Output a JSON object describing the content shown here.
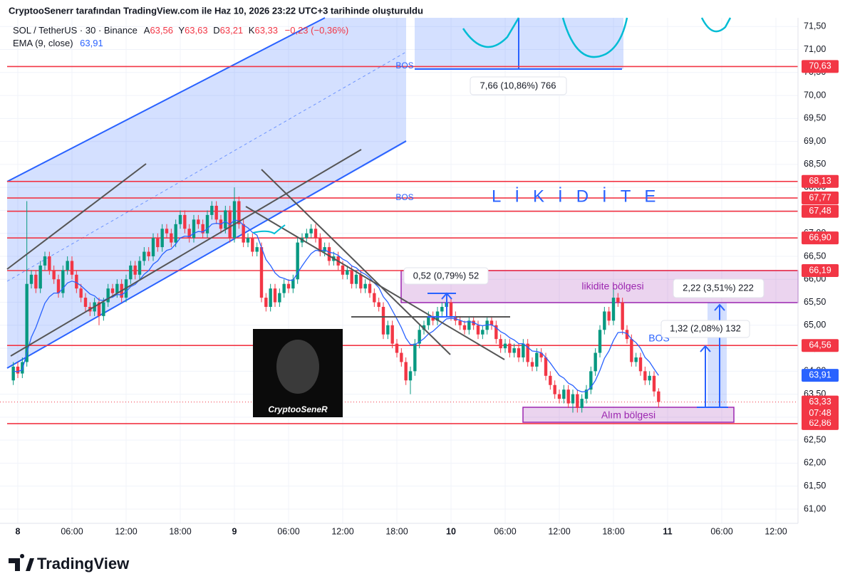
{
  "header": {
    "caption": "CryptooSenerr tarafından TradingView.com ile Haz 10, 2026 23:22 UTC+3 tarihinde oluşturuldu",
    "symbol": "SOL / TetherUS · 30 · Binance",
    "ohlc": [
      {
        "key": "A",
        "value": "63,56"
      },
      {
        "key": "Y",
        "value": "63,63"
      },
      {
        "key": "D",
        "value": "63,21"
      },
      {
        "key": "K",
        "value": "63,33"
      }
    ],
    "change": "−0,23 (−0,36%)"
  },
  "chart_data": {
    "type": "candlestick",
    "up_color": "#089981",
    "down_color": "#f23645",
    "grid": true,
    "categories": [
      null,
      "8",
      null,
      null,
      null,
      null,
      null,
      null,
      null,
      null,
      null,
      null,
      null,
      "06:00",
      null,
      null,
      null,
      null,
      null,
      null,
      null,
      null,
      null,
      null,
      null,
      "12:00",
      null,
      null,
      null,
      null,
      null,
      null,
      null,
      null,
      null,
      null,
      null,
      "18:00",
      null,
      null,
      null,
      null,
      null,
      null,
      null,
      null,
      null,
      null,
      null,
      "9",
      null,
      null,
      null,
      null,
      null,
      null,
      null,
      null,
      null,
      null,
      null,
      "06:00",
      null,
      null,
      null,
      null,
      null,
      null,
      null,
      null,
      null,
      null,
      null,
      "12:00",
      null,
      null,
      null,
      null,
      null,
      null,
      null,
      null,
      null,
      null,
      null,
      "18:00",
      null,
      null,
      null,
      null,
      null,
      null,
      null,
      null,
      null,
      null,
      null,
      "10",
      null,
      null,
      null,
      null,
      null,
      null,
      null,
      null,
      null,
      null,
      null,
      "06:00",
      null,
      null,
      null,
      null,
      null,
      null,
      null,
      null,
      null,
      null,
      null,
      "12:00",
      null,
      null,
      null,
      null,
      null,
      null,
      null,
      null,
      null,
      null,
      null,
      "18:00",
      null,
      null,
      null,
      null,
      null,
      null,
      null,
      null,
      null,
      null,
      null,
      "11",
      null,
      null,
      null,
      null,
      null,
      null,
      null,
      null,
      null,
      null,
      null,
      "06:00",
      null,
      null,
      null,
      null,
      null,
      null,
      null,
      null,
      null,
      null,
      null,
      "12:00",
      null,
      null,
      null,
      null
    ],
    "open": [
      63.8,
      64.1,
      63.95,
      64.2,
      65.9,
      66.1,
      65.8,
      66.3,
      66.5,
      66.2,
      66.0,
      65.7,
      66.2,
      66.4,
      66.1,
      65.8,
      65.6,
      65.4,
      65.3,
      65.5,
      65.2,
      65.5,
      65.8,
      65.7,
      65.9,
      65.6,
      66.0,
      66.3,
      66.1,
      66.4,
      66.6,
      66.5,
      66.9,
      66.7,
      67.1,
      67.0,
      66.8,
      67.2,
      67.4,
      67.1,
      66.9,
      67.3,
      67.2,
      67.0,
      67.4,
      67.6,
      67.3,
      67.1,
      67.5,
      66.9,
      67.7,
      67.2,
      66.8,
      66.9,
      66.6,
      66.7,
      65.6,
      65.4,
      65.8,
      65.5,
      65.7,
      65.9,
      65.8,
      66.0,
      66.8,
      66.9,
      67.0,
      67.1,
      66.9,
      66.6,
      66.7,
      66.4,
      66.5,
      66.3,
      66.1,
      66.2,
      65.9,
      66.1,
      65.8,
      65.9,
      65.7,
      65.5,
      65.4,
      64.8,
      65.0,
      64.6,
      64.4,
      64.2,
      63.8,
      64.0,
      64.6,
      64.9,
      65.0,
      65.2,
      65.1,
      65.3,
      65.4,
      65.5,
      65.2,
      65.1,
      65.0,
      64.9,
      65.1,
      65.0,
      64.8,
      64.9,
      65.1,
      65.0,
      64.7,
      64.5,
      64.6,
      64.4,
      64.5,
      64.3,
      64.6,
      64.2,
      64.1,
      64.4,
      64.3,
      63.9,
      63.7,
      63.5,
      63.4,
      63.6,
      63.3,
      63.5,
      63.2,
      63.4,
      63.6,
      64.0,
      64.4,
      64.9,
      65.3,
      65.1,
      65.6,
      65.5,
      64.9,
      64.7,
      64.2,
      64.3,
      64.0,
      63.8,
      63.9,
      63.56,
      null,
      null,
      null,
      null,
      null,
      null,
      null,
      null,
      null,
      null,
      null,
      null,
      null,
      null,
      null,
      null,
      null,
      null,
      null,
      null,
      null,
      null,
      null,
      null,
      null,
      null,
      null,
      null,
      null,
      null
    ],
    "high": [
      64.2,
      64.2,
      64.3,
      67.7,
      66.2,
      66.2,
      66.4,
      66.6,
      66.6,
      66.3,
      66.1,
      66.3,
      66.5,
      66.5,
      66.2,
      65.9,
      65.7,
      65.5,
      65.6,
      65.6,
      65.6,
      65.9,
      65.9,
      66.0,
      66.0,
      66.1,
      66.4,
      66.4,
      66.5,
      66.7,
      66.7,
      67.0,
      67.0,
      67.2,
      67.2,
      67.1,
      67.3,
      67.5,
      67.5,
      67.2,
      67.4,
      67.4,
      67.3,
      67.5,
      67.7,
      67.7,
      67.4,
      67.6,
      67.6,
      68.0,
      67.8,
      67.3,
      67.0,
      67.0,
      66.8,
      66.8,
      65.7,
      65.9,
      65.9,
      65.8,
      66.0,
      66.0,
      66.1,
      66.9,
      67.0,
      67.1,
      67.2,
      67.2,
      67.0,
      66.8,
      66.8,
      66.6,
      66.6,
      66.4,
      66.3,
      66.3,
      66.2,
      66.2,
      66.0,
      66.0,
      65.8,
      65.6,
      65.5,
      65.1,
      65.1,
      64.7,
      64.5,
      64.3,
      64.1,
      64.7,
      65.0,
      65.1,
      65.3,
      65.3,
      65.4,
      65.5,
      65.7,
      65.6,
      65.3,
      65.2,
      65.1,
      65.2,
      65.2,
      65.1,
      65.0,
      65.2,
      65.2,
      65.1,
      64.8,
      64.7,
      64.7,
      64.6,
      64.6,
      64.7,
      64.7,
      64.3,
      64.5,
      64.5,
      64.4,
      64.0,
      63.8,
      63.6,
      63.7,
      63.7,
      63.6,
      63.6,
      63.5,
      63.7,
      64.1,
      64.5,
      65.0,
      65.4,
      65.4,
      65.8,
      65.7,
      65.6,
      65.0,
      64.8,
      64.4,
      64.4,
      64.1,
      64.0,
      64.0,
      63.63,
      null,
      null,
      null,
      null,
      null,
      null,
      null,
      null,
      null,
      null,
      null,
      null,
      null,
      null,
      null,
      null,
      null,
      null,
      null,
      null,
      null,
      null,
      null,
      null,
      null,
      null,
      null,
      null,
      null,
      null
    ],
    "low": [
      63.7,
      63.85,
      63.85,
      64.1,
      65.8,
      65.7,
      65.7,
      66.2,
      66.1,
      65.9,
      65.6,
      65.6,
      66.1,
      66.0,
      65.7,
      65.5,
      65.3,
      65.2,
      65.2,
      65.0,
      65.1,
      65.4,
      65.6,
      65.6,
      65.5,
      65.5,
      65.9,
      66.0,
      66.0,
      66.3,
      66.4,
      66.4,
      66.6,
      66.6,
      66.9,
      66.7,
      66.7,
      67.1,
      67.0,
      66.8,
      66.8,
      67.1,
      66.9,
      66.9,
      67.3,
      67.2,
      67.0,
      67.0,
      66.8,
      66.8,
      67.1,
      66.7,
      66.7,
      66.5,
      66.5,
      65.5,
      65.3,
      65.3,
      65.4,
      65.4,
      65.6,
      65.7,
      65.7,
      65.9,
      66.7,
      66.8,
      66.9,
      66.8,
      66.5,
      66.5,
      66.3,
      66.3,
      66.2,
      66.0,
      66.0,
      65.8,
      65.8,
      65.7,
      65.7,
      65.6,
      65.4,
      65.3,
      64.7,
      64.7,
      64.5,
      64.3,
      64.1,
      63.7,
      63.5,
      63.9,
      64.5,
      64.8,
      64.9,
      65.0,
      65.0,
      65.2,
      65.3,
      65.1,
      65.0,
      64.9,
      64.8,
      64.8,
      64.9,
      64.7,
      64.7,
      64.8,
      64.9,
      64.6,
      64.4,
      64.4,
      64.3,
      64.3,
      64.2,
      64.2,
      64.1,
      64.0,
      64.0,
      64.2,
      63.8,
      63.6,
      63.4,
      63.3,
      63.3,
      63.2,
      63.1,
      63.1,
      63.1,
      63.3,
      63.5,
      63.9,
      64.3,
      64.8,
      65.0,
      65.0,
      65.4,
      64.8,
      64.6,
      64.1,
      64.1,
      63.9,
      63.7,
      63.7,
      63.45,
      63.21,
      null,
      null,
      null,
      null,
      null,
      null,
      null,
      null,
      null,
      null,
      null,
      null,
      null,
      null,
      null,
      null,
      null,
      null,
      null,
      null,
      null,
      null,
      null,
      null,
      null,
      null,
      null,
      null,
      null,
      null
    ],
    "close": [
      64.1,
      63.95,
      64.2,
      65.9,
      66.1,
      65.8,
      66.3,
      66.5,
      66.2,
      66.0,
      65.7,
      66.2,
      66.4,
      66.1,
      65.8,
      65.6,
      65.4,
      65.3,
      65.5,
      65.2,
      65.5,
      65.8,
      65.7,
      65.9,
      65.6,
      66.0,
      66.3,
      66.1,
      66.4,
      66.6,
      66.5,
      66.9,
      66.7,
      67.1,
      67.0,
      66.8,
      67.2,
      67.4,
      67.1,
      66.9,
      67.3,
      67.2,
      67.0,
      67.4,
      67.6,
      67.3,
      67.1,
      67.5,
      66.9,
      67.7,
      67.2,
      66.8,
      66.9,
      66.6,
      66.7,
      65.6,
      65.4,
      65.8,
      65.5,
      65.7,
      65.9,
      65.8,
      66.0,
      66.8,
      66.9,
      67.0,
      67.1,
      66.9,
      66.6,
      66.7,
      66.4,
      66.5,
      66.3,
      66.1,
      66.2,
      65.9,
      66.1,
      65.8,
      65.9,
      65.7,
      65.5,
      65.4,
      64.8,
      65.0,
      64.6,
      64.4,
      64.2,
      63.8,
      64.0,
      64.6,
      64.9,
      65.0,
      65.2,
      65.1,
      65.3,
      65.4,
      65.5,
      65.2,
      65.1,
      65.0,
      64.9,
      65.1,
      65.0,
      64.8,
      64.9,
      65.1,
      65.0,
      64.7,
      64.5,
      64.6,
      64.4,
      64.5,
      64.3,
      64.6,
      64.2,
      64.1,
      64.4,
      64.3,
      63.9,
      63.7,
      63.5,
      63.4,
      63.6,
      63.3,
      63.5,
      63.2,
      63.4,
      63.6,
      64.0,
      64.4,
      64.9,
      65.3,
      65.1,
      65.6,
      65.5,
      64.9,
      64.7,
      64.2,
      64.3,
      64.0,
      63.8,
      63.9,
      63.56,
      63.33,
      null,
      null,
      null,
      null,
      null,
      null,
      null,
      null,
      null,
      null,
      null,
      null,
      null,
      null,
      null,
      null,
      null,
      null,
      null,
      null,
      null,
      null,
      null,
      null,
      null,
      null,
      null,
      null,
      null,
      null
    ],
    "ema": {
      "name": "EMA (9, close)",
      "last_label": "63,91",
      "color": "#2962ff",
      "values": [
        64.0,
        63.99,
        64.03,
        64.4,
        64.74,
        64.95,
        65.22,
        65.48,
        65.62,
        65.7,
        65.7,
        65.8,
        65.92,
        65.96,
        65.93,
        65.86,
        65.77,
        65.68,
        65.64,
        65.55,
        65.54,
        65.59,
        65.61,
        65.67,
        65.66,
        65.73,
        65.84,
        65.89,
        65.99,
        66.11,
        66.19,
        66.33,
        66.4,
        66.54,
        66.63,
        66.66,
        66.77,
        66.9,
        66.94,
        66.93,
        67.0,
        67.04,
        67.03,
        67.1,
        67.2,
        67.22,
        67.2,
        67.26,
        67.19,
        67.29,
        67.27,
        67.18,
        67.12,
        67.02,
        66.96,
        66.69,
        66.43,
        66.3,
        66.14,
        66.05,
        66.02,
        65.98,
        65.98,
        66.14,
        66.29,
        66.43,
        66.56,
        66.63,
        66.62,
        66.64,
        66.59,
        66.57,
        66.52,
        66.44,
        66.39,
        66.29,
        66.25,
        66.16,
        66.11,
        66.03,
        65.92,
        65.82,
        65.62,
        65.5,
        65.32,
        65.14,
        64.95,
        64.72,
        64.58,
        64.58,
        64.64,
        64.71,
        64.81,
        64.87,
        64.96,
        65.05,
        65.14,
        65.15,
        65.14,
        65.11,
        65.07,
        65.08,
        65.06,
        65.01,
        64.99,
        65.01,
        65.01,
        64.95,
        64.86,
        64.81,
        64.73,
        64.68,
        64.6,
        64.6,
        64.52,
        64.44,
        64.43,
        64.4,
        64.3,
        64.18,
        64.04,
        63.91,
        63.85,
        63.74,
        63.69,
        63.59,
        63.55,
        63.56,
        63.65,
        63.8,
        64.02,
        64.28,
        64.44,
        64.67,
        64.84,
        64.85,
        64.82,
        64.7,
        64.62,
        64.5,
        64.3,
        64.2,
        64.05,
        63.91,
        null,
        null,
        null,
        null,
        null,
        null,
        null,
        null,
        null,
        null,
        null,
        null,
        null,
        null,
        null,
        null,
        null,
        null,
        null,
        null,
        null,
        null,
        null,
        null,
        null,
        null,
        null,
        null,
        null,
        null
      ]
    },
    "ylim": [
      60.69,
      71.69
    ],
    "yticks": [
      {
        "value": 61,
        "label": "61,00"
      },
      {
        "value": 61.5,
        "label": "61,50"
      },
      {
        "value": 62,
        "label": "62,00"
      },
      {
        "value": 62.5,
        "label": "62,50"
      },
      {
        "value": 63,
        "label": "63,00"
      },
      {
        "value": 63.5,
        "label": "63,50"
      },
      {
        "value": 64,
        "label": "64,00"
      },
      {
        "value": 64.5,
        "label": "64,50"
      },
      {
        "value": 65,
        "label": "65,00"
      },
      {
        "value": 65.5,
        "label": "65,50"
      },
      {
        "value": 66,
        "label": "66,00"
      },
      {
        "value": 66.5,
        "label": "66,50"
      },
      {
        "value": 67,
        "label": "67,00"
      },
      {
        "value": 67.5,
        "label": "67,50"
      },
      {
        "value": 68,
        "label": "68,00"
      },
      {
        "value": 68.5,
        "label": "68,50"
      },
      {
        "value": 69,
        "label": "69,00"
      },
      {
        "value": 69.5,
        "label": "69,50"
      },
      {
        "value": 70,
        "label": "70,00"
      },
      {
        "value": 70.5,
        "label": "70,50"
      },
      {
        "value": 71,
        "label": "71,00"
      },
      {
        "value": 71.5,
        "label": "71,50"
      }
    ],
    "levels": [
      {
        "value": 70.63,
        "label": "70,63",
        "color": "#f23645",
        "line": "solid"
      },
      {
        "value": 68.13,
        "label": "68,13",
        "color": "#f23645",
        "line": "solid"
      },
      {
        "value": 67.77,
        "label": "67,77",
        "color": "#f23645",
        "line": "solid"
      },
      {
        "value": 67.48,
        "label": "67,48",
        "color": "#f23645",
        "line": "solid"
      },
      {
        "value": 66.9,
        "label": "66,90",
        "color": "#f23645",
        "line": "solid"
      },
      {
        "value": 66.19,
        "label": "66,19",
        "color": "#f23645",
        "line": "solid"
      },
      {
        "value": 64.56,
        "label": "64,56",
        "color": "#f23645",
        "line": "solid"
      },
      {
        "value": 62.86,
        "label": "62,86",
        "color": "#f23645",
        "line": "solid"
      },
      {
        "value": 63.91,
        "label": "63,91",
        "color": "#2962ff",
        "line": "none"
      },
      {
        "value": 63.33,
        "label": "63,33",
        "color": "#f23645",
        "line": "dotted",
        "countdown": "07:48"
      }
    ],
    "annotations": {
      "bos_labels": [
        "BOS",
        "BOS",
        "BOS"
      ],
      "liquidity": "LİKİDİTE",
      "liquidity_zone": "likidite bölgesi",
      "buy_zone": "Alım bölgesi",
      "measures": [
        "7,66 (10,86%) 766",
        "0,52 (0,79%) 52",
        "2,22 (3,51%) 222",
        "1,32 (2,08%) 132"
      ],
      "watermark": "CryptooSeneR"
    }
  },
  "footer": {
    "brand": "TradingView"
  }
}
